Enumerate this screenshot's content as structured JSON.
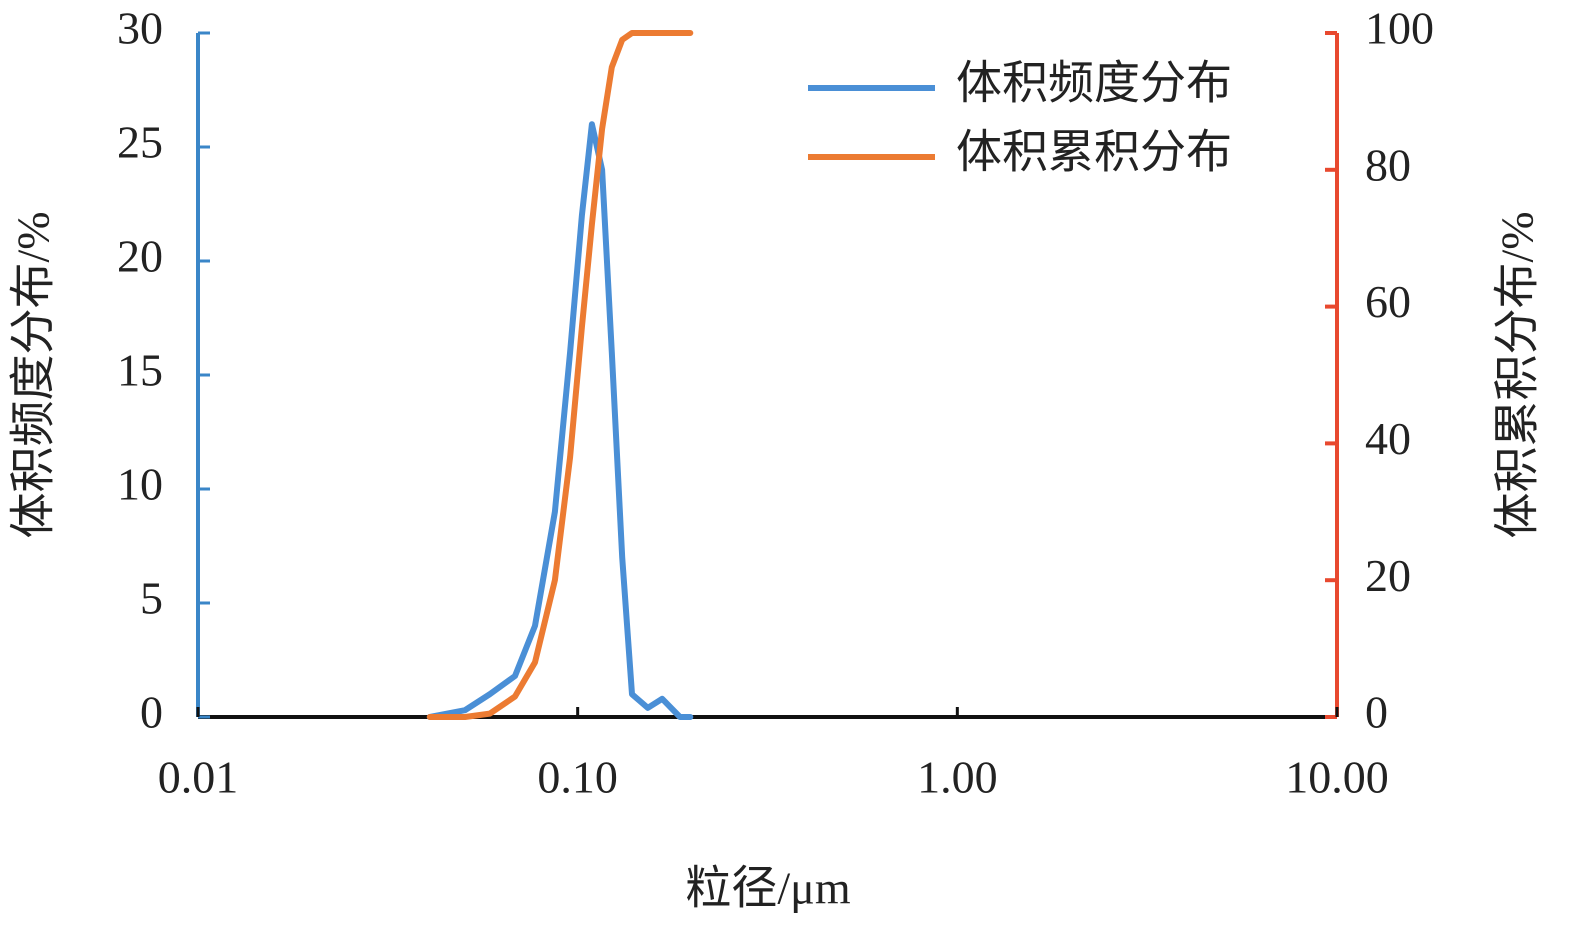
{
  "chart_data": {
    "type": "line",
    "x_label": "粒径/μm",
    "y_label": "体积频度分布/%",
    "y2_label": "体积累积分布/%",
    "xlog": true,
    "x": [
      0.0408,
      0.0505,
      0.0587,
      0.0684,
      0.0772,
      0.0871,
      0.0955,
      0.1026,
      0.109,
      0.116,
      0.123,
      0.131,
      0.139,
      0.153,
      0.167,
      0.186,
      0.198
    ],
    "series": [
      {
        "name": "体积频度分布",
        "color": "#4a8fd6",
        "values": [
          0,
          0.3,
          1.0,
          1.8,
          4,
          9,
          16,
          22,
          26,
          24,
          16,
          7,
          1,
          0.4,
          0.8,
          0,
          0
        ]
      },
      {
        "name": "体积累积分布",
        "color": "#ec7b32",
        "axis": "y2",
        "values": [
          0,
          0,
          0.5,
          3,
          8,
          20,
          38,
          57,
          72,
          86,
          95,
          99,
          100,
          100,
          100,
          100,
          100
        ]
      }
    ],
    "xlim": [
      0.01,
      10
    ],
    "xticks": [
      0.01,
      {
        "value": 0.1,
        "label": "0.10"
      },
      {
        "value": 1,
        "label": "1.00"
      },
      {
        "value": 10,
        "label": "10.00"
      }
    ],
    "ylim": [
      0,
      30
    ],
    "yticks": [
      0,
      5,
      10,
      15,
      20,
      25,
      30
    ],
    "y2lim": [
      0,
      100
    ],
    "y2ticks": [
      0,
      20,
      40,
      60,
      80,
      100
    ],
    "y_axis_color": "#3a86c8",
    "y2_axis_color": "#e8492f",
    "legend": "upper right"
  }
}
